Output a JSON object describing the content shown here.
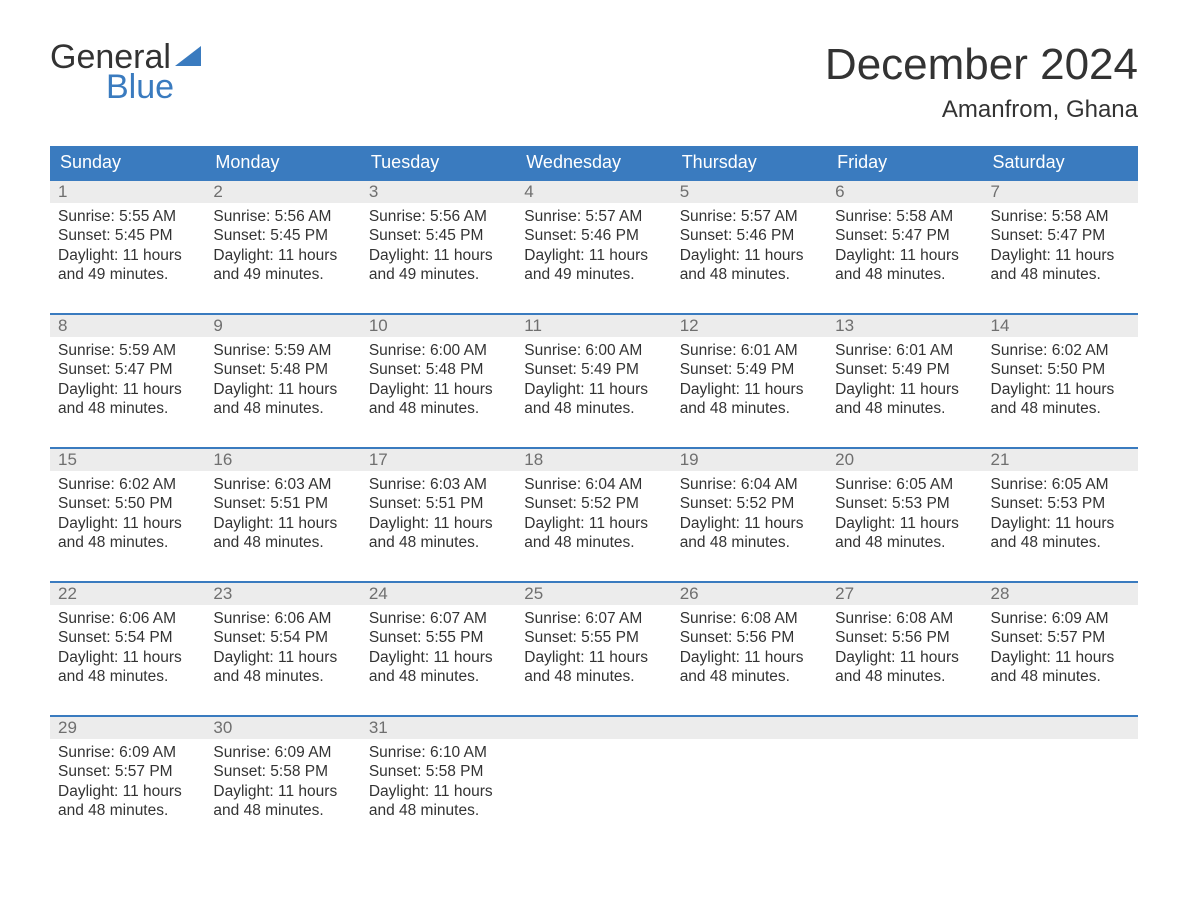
{
  "brand": {
    "word1": "General",
    "word2": "Blue"
  },
  "colors": {
    "accent": "#3a7bbf",
    "headerText": "#ffffff",
    "dayNumBg": "#ececec",
    "dayNumText": "#6f6f6f",
    "bodyText": "#333333",
    "background": "#ffffff"
  },
  "title": "December 2024",
  "location": "Amanfrom, Ghana",
  "weekdays": [
    "Sunday",
    "Monday",
    "Tuesday",
    "Wednesday",
    "Thursday",
    "Friday",
    "Saturday"
  ],
  "labels": {
    "sunrise": "Sunrise:",
    "sunset": "Sunset:",
    "daylightPrefix": "Daylight:"
  },
  "weeks": [
    [
      {
        "n": 1,
        "sunrise": "5:55 AM",
        "sunset": "5:45 PM",
        "daylight": "11 hours and 49 minutes."
      },
      {
        "n": 2,
        "sunrise": "5:56 AM",
        "sunset": "5:45 PM",
        "daylight": "11 hours and 49 minutes."
      },
      {
        "n": 3,
        "sunrise": "5:56 AM",
        "sunset": "5:45 PM",
        "daylight": "11 hours and 49 minutes."
      },
      {
        "n": 4,
        "sunrise": "5:57 AM",
        "sunset": "5:46 PM",
        "daylight": "11 hours and 49 minutes."
      },
      {
        "n": 5,
        "sunrise": "5:57 AM",
        "sunset": "5:46 PM",
        "daylight": "11 hours and 48 minutes."
      },
      {
        "n": 6,
        "sunrise": "5:58 AM",
        "sunset": "5:47 PM",
        "daylight": "11 hours and 48 minutes."
      },
      {
        "n": 7,
        "sunrise": "5:58 AM",
        "sunset": "5:47 PM",
        "daylight": "11 hours and 48 minutes."
      }
    ],
    [
      {
        "n": 8,
        "sunrise": "5:59 AM",
        "sunset": "5:47 PM",
        "daylight": "11 hours and 48 minutes."
      },
      {
        "n": 9,
        "sunrise": "5:59 AM",
        "sunset": "5:48 PM",
        "daylight": "11 hours and 48 minutes."
      },
      {
        "n": 10,
        "sunrise": "6:00 AM",
        "sunset": "5:48 PM",
        "daylight": "11 hours and 48 minutes."
      },
      {
        "n": 11,
        "sunrise": "6:00 AM",
        "sunset": "5:49 PM",
        "daylight": "11 hours and 48 minutes."
      },
      {
        "n": 12,
        "sunrise": "6:01 AM",
        "sunset": "5:49 PM",
        "daylight": "11 hours and 48 minutes."
      },
      {
        "n": 13,
        "sunrise": "6:01 AM",
        "sunset": "5:49 PM",
        "daylight": "11 hours and 48 minutes."
      },
      {
        "n": 14,
        "sunrise": "6:02 AM",
        "sunset": "5:50 PM",
        "daylight": "11 hours and 48 minutes."
      }
    ],
    [
      {
        "n": 15,
        "sunrise": "6:02 AM",
        "sunset": "5:50 PM",
        "daylight": "11 hours and 48 minutes."
      },
      {
        "n": 16,
        "sunrise": "6:03 AM",
        "sunset": "5:51 PM",
        "daylight": "11 hours and 48 minutes."
      },
      {
        "n": 17,
        "sunrise": "6:03 AM",
        "sunset": "5:51 PM",
        "daylight": "11 hours and 48 minutes."
      },
      {
        "n": 18,
        "sunrise": "6:04 AM",
        "sunset": "5:52 PM",
        "daylight": "11 hours and 48 minutes."
      },
      {
        "n": 19,
        "sunrise": "6:04 AM",
        "sunset": "5:52 PM",
        "daylight": "11 hours and 48 minutes."
      },
      {
        "n": 20,
        "sunrise": "6:05 AM",
        "sunset": "5:53 PM",
        "daylight": "11 hours and 48 minutes."
      },
      {
        "n": 21,
        "sunrise": "6:05 AM",
        "sunset": "5:53 PM",
        "daylight": "11 hours and 48 minutes."
      }
    ],
    [
      {
        "n": 22,
        "sunrise": "6:06 AM",
        "sunset": "5:54 PM",
        "daylight": "11 hours and 48 minutes."
      },
      {
        "n": 23,
        "sunrise": "6:06 AM",
        "sunset": "5:54 PM",
        "daylight": "11 hours and 48 minutes."
      },
      {
        "n": 24,
        "sunrise": "6:07 AM",
        "sunset": "5:55 PM",
        "daylight": "11 hours and 48 minutes."
      },
      {
        "n": 25,
        "sunrise": "6:07 AM",
        "sunset": "5:55 PM",
        "daylight": "11 hours and 48 minutes."
      },
      {
        "n": 26,
        "sunrise": "6:08 AM",
        "sunset": "5:56 PM",
        "daylight": "11 hours and 48 minutes."
      },
      {
        "n": 27,
        "sunrise": "6:08 AM",
        "sunset": "5:56 PM",
        "daylight": "11 hours and 48 minutes."
      },
      {
        "n": 28,
        "sunrise": "6:09 AM",
        "sunset": "5:57 PM",
        "daylight": "11 hours and 48 minutes."
      }
    ],
    [
      {
        "n": 29,
        "sunrise": "6:09 AM",
        "sunset": "5:57 PM",
        "daylight": "11 hours and 48 minutes."
      },
      {
        "n": 30,
        "sunrise": "6:09 AM",
        "sunset": "5:58 PM",
        "daylight": "11 hours and 48 minutes."
      },
      {
        "n": 31,
        "sunrise": "6:10 AM",
        "sunset": "5:58 PM",
        "daylight": "11 hours and 48 minutes."
      },
      null,
      null,
      null,
      null
    ]
  ]
}
